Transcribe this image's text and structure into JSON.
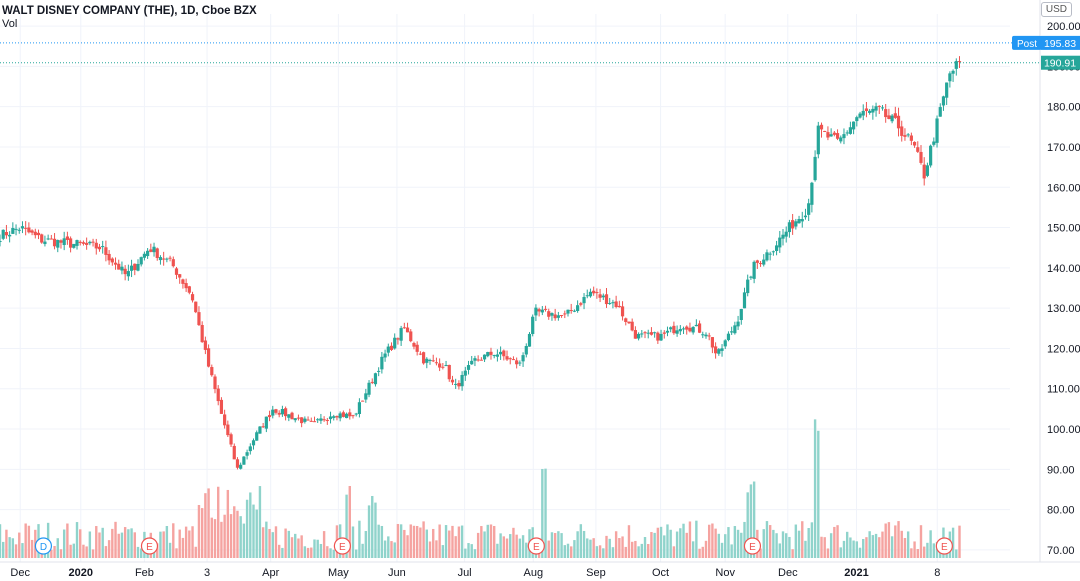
{
  "header": {
    "title": "WALT DISNEY COMPANY (THE), 1D, Cboe BZX",
    "volume_label": "Vol",
    "currency": "USD"
  },
  "colors": {
    "up": "#26a69a",
    "down": "#ef5350",
    "up_volume": "#8fd3cb",
    "down_volume": "#f5a3a0",
    "grid": "#f0f3fa",
    "post_tag": "#2196f3",
    "last_tag": "#26a69a",
    "event_dividend": "#2196f3",
    "event_earnings": "#ef5350"
  },
  "chart_data": {
    "type": "candlestick",
    "ylim": [
      67,
      203
    ],
    "y_ticks": [
      70,
      80,
      90,
      100,
      110,
      120,
      130,
      140,
      150,
      160,
      170,
      180,
      190,
      200
    ],
    "y_tick_labels": [
      "70.00",
      "80.00",
      "90.00",
      "100.00",
      "110.00",
      "120.00",
      "130.00",
      "140.00",
      "150.00",
      "160.00",
      "170.00",
      "180.00",
      "190.00",
      "200.00"
    ],
    "x_labels": [
      "Dec",
      "2020",
      "Feb",
      "3",
      "Apr",
      "May",
      "Jun",
      "Jul",
      "Aug",
      "Sep",
      "Oct",
      "Nov",
      "Dec",
      "2021",
      "8"
    ],
    "x_label_positions": [
      0.02,
      0.08,
      0.143,
      0.205,
      0.268,
      0.335,
      0.393,
      0.46,
      0.528,
      0.59,
      0.654,
      0.718,
      0.78,
      0.848,
      0.928
    ],
    "points": [
      {
        "t": 0.0,
        "c": 148
      },
      {
        "t": 0.02,
        "c": 150
      },
      {
        "t": 0.04,
        "c": 147
      },
      {
        "t": 0.07,
        "c": 146
      },
      {
        "t": 0.1,
        "c": 145
      },
      {
        "t": 0.125,
        "c": 138
      },
      {
        "t": 0.148,
        "c": 145
      },
      {
        "t": 0.17,
        "c": 141
      },
      {
        "t": 0.19,
        "c": 133
      },
      {
        "t": 0.205,
        "c": 117
      },
      {
        "t": 0.22,
        "c": 103
      },
      {
        "t": 0.235,
        "c": 90
      },
      {
        "t": 0.25,
        "c": 97
      },
      {
        "t": 0.27,
        "c": 105
      },
      {
        "t": 0.29,
        "c": 103
      },
      {
        "t": 0.31,
        "c": 101
      },
      {
        "t": 0.33,
        "c": 104
      },
      {
        "t": 0.35,
        "c": 103
      },
      {
        "t": 0.36,
        "c": 108
      },
      {
        "t": 0.38,
        "c": 118
      },
      {
        "t": 0.4,
        "c": 125
      },
      {
        "t": 0.42,
        "c": 117
      },
      {
        "t": 0.44,
        "c": 116
      },
      {
        "t": 0.45,
        "c": 110
      },
      {
        "t": 0.47,
        "c": 117
      },
      {
        "t": 0.49,
        "c": 119
      },
      {
        "t": 0.515,
        "c": 116
      },
      {
        "t": 0.53,
        "c": 129
      },
      {
        "t": 0.56,
        "c": 128
      },
      {
        "t": 0.585,
        "c": 134
      },
      {
        "t": 0.61,
        "c": 131
      },
      {
        "t": 0.63,
        "c": 123
      },
      {
        "t": 0.655,
        "c": 123
      },
      {
        "t": 0.675,
        "c": 126
      },
      {
        "t": 0.7,
        "c": 124
      },
      {
        "t": 0.71,
        "c": 118
      },
      {
        "t": 0.73,
        "c": 127
      },
      {
        "t": 0.745,
        "c": 140
      },
      {
        "t": 0.765,
        "c": 145
      },
      {
        "t": 0.785,
        "c": 151
      },
      {
        "t": 0.8,
        "c": 155
      },
      {
        "t": 0.81,
        "c": 174
      },
      {
        "t": 0.83,
        "c": 171
      },
      {
        "t": 0.85,
        "c": 178
      },
      {
        "t": 0.87,
        "c": 179
      },
      {
        "t": 0.89,
        "c": 175
      },
      {
        "t": 0.905,
        "c": 170
      },
      {
        "t": 0.915,
        "c": 163
      },
      {
        "t": 0.93,
        "c": 178
      },
      {
        "t": 0.94,
        "c": 188
      },
      {
        "t": 0.95,
        "c": 191
      }
    ],
    "volume_spikes": [
      {
        "t": 0.233,
        "v": 0.35
      },
      {
        "t": 0.344,
        "v": 0.45
      },
      {
        "t": 0.368,
        "v": 0.4
      },
      {
        "t": 0.539,
        "v": 0.6
      },
      {
        "t": 0.744,
        "v": 0.5
      },
      {
        "t": 0.808,
        "v": 0.92
      }
    ],
    "post_price": 195.83,
    "last_price": 190.91,
    "post_label": "Post",
    "post_value_label": "195.83",
    "last_value_label": "190.91",
    "events": [
      {
        "t": 0.043,
        "label": "D",
        "kind": "dividend"
      },
      {
        "t": 0.148,
        "label": "E",
        "kind": "earnings"
      },
      {
        "t": 0.339,
        "label": "E",
        "kind": "earnings"
      },
      {
        "t": 0.531,
        "label": "E",
        "kind": "earnings"
      },
      {
        "t": 0.745,
        "label": "E",
        "kind": "earnings"
      },
      {
        "t": 0.935,
        "label": "E",
        "kind": "earnings"
      }
    ]
  }
}
